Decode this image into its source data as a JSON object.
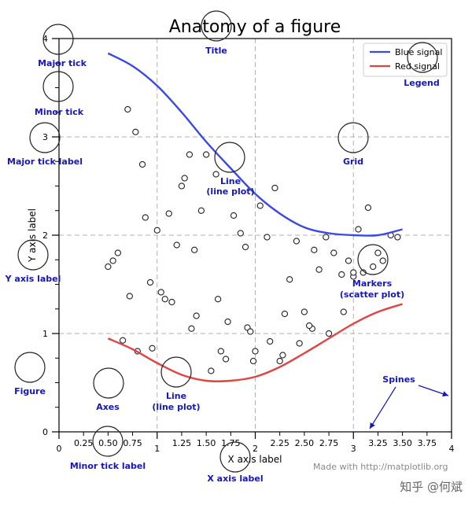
{
  "chart_data": {
    "type": "line",
    "title": "Anatomy of a figure",
    "xlabel": "X axis label",
    "ylabel": "Y axis label",
    "xlim": [
      0,
      4
    ],
    "ylim": [
      0,
      4
    ],
    "grid": true,
    "legend_position": "top-right",
    "major_xticks": [
      0,
      1,
      2,
      3,
      4
    ],
    "minor_xticks": [
      0.25,
      0.5,
      0.75,
      1.25,
      1.5,
      1.75,
      2.25,
      2.5,
      2.75,
      3.25,
      3.5,
      3.75
    ],
    "major_yticks": [
      0,
      1,
      2,
      3,
      4
    ],
    "minor_yticks": [
      0.25,
      0.5,
      0.75,
      1.25,
      1.5,
      1.75,
      2.25,
      2.5,
      2.75,
      3.25,
      3.5,
      3.75
    ],
    "major_xtick_labels": [
      "0",
      "1",
      "2",
      "3",
      "4"
    ],
    "minor_xtick_labels": [
      "0.25",
      "0.50",
      "0.75",
      "1.25",
      "1.50",
      "1.75",
      "2.25",
      "2.50",
      "2.75",
      "3.25",
      "3.50",
      "3.75"
    ],
    "major_ytick_labels": [
      "0",
      "1",
      "2",
      "3",
      "4"
    ],
    "series": [
      {
        "name": "Blue signal",
        "color": "#3a49e6",
        "x": [
          0.5,
          0.75,
          1.0,
          1.25,
          1.5,
          1.75,
          2.0,
          2.25,
          2.5,
          2.75,
          3.0,
          3.25,
          3.5
        ],
        "y": [
          3.85,
          3.72,
          3.52,
          3.25,
          2.95,
          2.68,
          2.42,
          2.22,
          2.08,
          2.02,
          2.0,
          2.0,
          2.06
        ]
      },
      {
        "name": "Red signal",
        "color": "#e04545",
        "x": [
          0.5,
          0.75,
          1.0,
          1.25,
          1.5,
          1.75,
          2.0,
          2.25,
          2.5,
          2.75,
          3.0,
          3.25,
          3.5
        ],
        "y": [
          0.95,
          0.84,
          0.7,
          0.58,
          0.52,
          0.52,
          0.56,
          0.66,
          0.8,
          0.95,
          1.1,
          1.22,
          1.3
        ]
      }
    ],
    "scatter": {
      "name": "Markers (scatter plot)",
      "x": [
        0.65,
        0.72,
        0.8,
        0.78,
        0.85,
        0.93,
        1.0,
        1.04,
        1.12,
        1.2,
        1.28,
        1.33,
        1.38,
        1.45,
        1.5,
        1.55,
        1.62,
        1.7,
        1.78,
        1.85,
        1.92,
        1.98,
        2.05,
        2.12,
        2.2,
        2.28,
        2.35,
        2.42,
        2.5,
        2.58,
        2.65,
        2.72,
        2.8,
        2.88,
        2.95,
        3.0,
        3.05,
        3.1,
        3.15,
        3.2,
        3.25,
        3.3,
        3.38,
        3.45,
        0.6,
        0.55,
        0.5,
        0.95,
        1.08,
        1.15,
        1.25,
        1.35,
        1.6,
        1.9,
        2.0,
        2.3,
        2.45,
        2.6,
        2.75,
        0.7,
        0.88,
        1.4,
        1.65,
        1.95,
        2.15,
        2.55,
        2.9,
        3.0,
        1.72,
        2.25
      ],
      "y": [
        0.93,
        1.38,
        0.82,
        3.05,
        2.72,
        1.52,
        2.05,
        1.42,
        2.22,
        1.9,
        2.58,
        2.82,
        1.85,
        2.25,
        2.82,
        0.62,
        1.35,
        0.74,
        2.2,
        2.02,
        1.06,
        0.72,
        2.3,
        1.98,
        2.48,
        0.78,
        1.55,
        1.94,
        1.22,
        1.05,
        1.65,
        1.98,
        1.82,
        1.6,
        1.74,
        1.58,
        2.06,
        1.62,
        2.28,
        1.68,
        1.82,
        1.74,
        2.0,
        1.98,
        1.82,
        1.74,
        1.68,
        0.85,
        1.35,
        1.32,
        2.5,
        1.05,
        2.62,
        1.88,
        0.82,
        1.2,
        0.9,
        1.85,
        1.0,
        3.28,
        2.18,
        1.18,
        0.82,
        1.02,
        0.92,
        1.08,
        1.22,
        1.62,
        1.12,
        0.72
      ]
    }
  },
  "annotations": {
    "title": "Title",
    "major_tick": "Major tick",
    "minor_tick": "Minor tick",
    "major_tick_label": "Major tick label",
    "y_axis_label": "Y axis label",
    "figure": "Figure",
    "axes": "Axes",
    "line_upper_1": "Line",
    "line_upper_2": "(line plot)",
    "line_lower_1": "Line",
    "line_lower_2": "(line plot)",
    "grid": "Grid",
    "markers_1": "Markers",
    "markers_2": "(scatter plot)",
    "legend": "Legend",
    "spines": "Spines",
    "minor_tick_label": "Minor tick label",
    "x_axis_label": "X axis label"
  },
  "credit": "Made with http://matplotlib.org",
  "watermark": "知乎 @何斌"
}
